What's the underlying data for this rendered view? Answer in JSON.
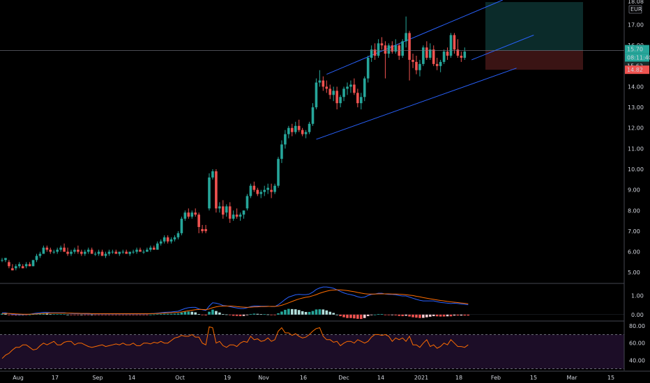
{
  "chart_data": {
    "type": "candlestick",
    "currency": "EUR",
    "price_axis": {
      "ticks": [
        5,
        6,
        7,
        8,
        9,
        10,
        11,
        12,
        13,
        14,
        15,
        16,
        17
      ],
      "tick_labels": [
        "5.00",
        "6.00",
        "7.00",
        "8.00",
        "9.00",
        "10.00",
        "11.00",
        "12.00",
        "13.00",
        "14.00",
        "15.00",
        "16.00",
        "17.00"
      ],
      "ylim": [
        4.5,
        18.2
      ],
      "top_label": "18.08",
      "last_price_label": "15.70",
      "countdown_label": "08:11:40",
      "secondary_price_label": "15.62",
      "stop_label": "14.82"
    },
    "time_axis": {
      "labels": [
        "Aug",
        "17",
        "Sep",
        "14",
        "Oct",
        "19",
        "Nov",
        "16",
        "Dec",
        "14",
        "2021",
        "18",
        "Feb",
        "15",
        "Mar",
        "15"
      ]
    },
    "candles": [
      [
        5.6,
        5.7,
        5.5,
        5.6
      ],
      [
        5.6,
        5.7,
        5.5,
        5.7
      ],
      [
        5.5,
        5.6,
        5.2,
        5.3
      ],
      [
        5.2,
        5.4,
        5.1,
        5.1
      ],
      [
        5.2,
        5.4,
        5.1,
        5.3
      ],
      [
        5.3,
        5.5,
        5.2,
        5.4
      ],
      [
        5.3,
        5.4,
        5.2,
        5.2
      ],
      [
        5.3,
        5.5,
        5.2,
        5.4
      ],
      [
        5.4,
        5.5,
        5.3,
        5.3
      ],
      [
        5.3,
        5.6,
        5.3,
        5.6
      ],
      [
        5.6,
        5.9,
        5.5,
        5.8
      ],
      [
        5.8,
        6.0,
        5.7,
        5.9
      ],
      [
        5.9,
        6.3,
        5.9,
        6.2
      ],
      [
        6.2,
        6.3,
        6.0,
        6.1
      ],
      [
        6.1,
        6.2,
        5.9,
        6.0
      ],
      [
        6.0,
        6.1,
        5.9,
        6.0
      ],
      [
        6.0,
        6.2,
        5.9,
        6.1
      ],
      [
        6.1,
        6.3,
        6.0,
        6.2
      ],
      [
        6.2,
        6.4,
        6.0,
        6.0
      ],
      [
        6.0,
        6.2,
        5.8,
        5.9
      ],
      [
        5.9,
        6.1,
        5.8,
        6.0
      ],
      [
        6.0,
        6.2,
        5.9,
        6.1
      ],
      [
        6.1,
        6.3,
        5.9,
        6.0
      ],
      [
        6.0,
        6.1,
        5.8,
        5.9
      ],
      [
        5.9,
        6.1,
        5.8,
        6.0
      ],
      [
        6.0,
        6.2,
        5.9,
        6.1
      ],
      [
        6.1,
        6.2,
        5.9,
        5.9
      ],
      [
        5.9,
        6.0,
        5.8,
        5.9
      ],
      [
        5.9,
        6.1,
        5.8,
        6.0
      ],
      [
        6.0,
        6.1,
        5.8,
        5.8
      ],
      [
        5.8,
        6.0,
        5.7,
        5.9
      ],
      [
        5.9,
        6.1,
        5.8,
        6.0
      ],
      [
        6.0,
        6.1,
        5.9,
        6.0
      ],
      [
        6.0,
        6.1,
        5.9,
        5.9
      ],
      [
        5.9,
        6.0,
        5.8,
        6.0
      ],
      [
        6.0,
        6.1,
        5.9,
        6.0
      ],
      [
        6.0,
        6.1,
        5.9,
        5.9
      ],
      [
        5.9,
        6.0,
        5.8,
        6.0
      ],
      [
        6.0,
        6.1,
        5.9,
        6.0
      ],
      [
        6.0,
        6.2,
        5.9,
        6.1
      ],
      [
        6.1,
        6.2,
        6.0,
        6.0
      ],
      [
        6.0,
        6.1,
        5.9,
        6.0
      ],
      [
        6.0,
        6.2,
        6.0,
        6.1
      ],
      [
        6.1,
        6.3,
        6.0,
        6.2
      ],
      [
        6.2,
        6.3,
        6.1,
        6.1
      ],
      [
        6.1,
        6.5,
        6.1,
        6.4
      ],
      [
        6.4,
        6.6,
        6.3,
        6.5
      ],
      [
        6.5,
        6.8,
        6.4,
        6.7
      ],
      [
        6.7,
        6.8,
        6.4,
        6.5
      ],
      [
        6.5,
        6.7,
        6.4,
        6.6
      ],
      [
        6.6,
        6.8,
        6.5,
        6.7
      ],
      [
        6.7,
        7.0,
        6.6,
        6.9
      ],
      [
        6.9,
        7.7,
        6.8,
        7.6
      ],
      [
        7.6,
        8.0,
        7.5,
        7.9
      ],
      [
        7.9,
        8.1,
        7.6,
        7.7
      ],
      [
        7.7,
        8.0,
        7.6,
        7.9
      ],
      [
        7.9,
        8.1,
        7.7,
        7.8
      ],
      [
        7.8,
        7.9,
        6.9,
        7.2
      ],
      [
        7.1,
        7.3,
        6.9,
        7.0
      ],
      [
        7.1,
        7.3,
        6.9,
        7.0
      ],
      [
        8.1,
        9.8,
        8.0,
        9.6
      ],
      [
        9.6,
        10.0,
        9.5,
        9.9
      ],
      [
        9.9,
        10.0,
        7.9,
        8.1
      ],
      [
        8.1,
        8.4,
        7.9,
        8.2
      ],
      [
        8.2,
        8.5,
        7.6,
        7.8
      ],
      [
        7.9,
        8.3,
        7.7,
        8.2
      ],
      [
        8.2,
        8.4,
        7.4,
        7.6
      ],
      [
        7.6,
        8.0,
        7.5,
        7.8
      ],
      [
        7.8,
        8.1,
        7.6,
        7.7
      ],
      [
        7.7,
        7.9,
        7.5,
        7.8
      ],
      [
        7.8,
        8.0,
        7.6,
        8.0
      ],
      [
        8.1,
        8.8,
        8.0,
        8.7
      ],
      [
        8.7,
        9.3,
        8.6,
        9.2
      ],
      [
        9.2,
        9.4,
        8.9,
        9.0
      ],
      [
        9.0,
        9.1,
        8.7,
        8.8
      ],
      [
        8.8,
        9.0,
        8.6,
        8.9
      ],
      [
        8.9,
        9.2,
        8.7,
        9.0
      ],
      [
        9.0,
        9.3,
        8.8,
        9.1
      ],
      [
        9.0,
        9.3,
        8.6,
        8.9
      ],
      [
        8.9,
        9.3,
        8.8,
        9.2
      ],
      [
        9.2,
        10.6,
        9.1,
        10.5
      ],
      [
        10.5,
        11.4,
        10.3,
        11.2
      ],
      [
        11.2,
        11.9,
        11.0,
        11.7
      ],
      [
        11.7,
        12.1,
        11.5,
        12.0
      ],
      [
        12.0,
        12.2,
        11.6,
        11.8
      ],
      [
        11.8,
        12.3,
        11.7,
        12.1
      ],
      [
        12.1,
        12.4,
        11.8,
        11.9
      ],
      [
        11.9,
        12.0,
        11.6,
        11.7
      ],
      [
        11.7,
        11.9,
        11.5,
        11.8
      ],
      [
        11.8,
        12.3,
        11.7,
        12.2
      ],
      [
        12.2,
        13.2,
        12.1,
        13.0
      ],
      [
        13.0,
        14.4,
        12.9,
        14.2
      ],
      [
        14.2,
        14.8,
        14.0,
        14.3
      ],
      [
        14.3,
        14.5,
        13.8,
        14.0
      ],
      [
        14.0,
        14.3,
        13.7,
        13.9
      ],
      [
        13.9,
        14.1,
        13.4,
        13.6
      ],
      [
        13.6,
        14.0,
        13.3,
        13.8
      ],
      [
        13.8,
        14.0,
        12.9,
        13.2
      ],
      [
        13.2,
        13.6,
        13.0,
        13.5
      ],
      [
        13.5,
        14.0,
        13.3,
        13.9
      ],
      [
        13.9,
        14.2,
        13.6,
        14.0
      ],
      [
        14.0,
        14.3,
        13.7,
        14.1
      ],
      [
        14.1,
        14.4,
        13.6,
        13.7
      ],
      [
        13.7,
        13.9,
        13.0,
        13.2
      ],
      [
        13.2,
        13.7,
        12.9,
        13.5
      ],
      [
        13.5,
        14.5,
        13.3,
        14.4
      ],
      [
        14.4,
        15.5,
        14.2,
        15.4
      ],
      [
        15.4,
        16.0,
        15.2,
        15.8
      ],
      [
        15.8,
        16.1,
        15.3,
        15.5
      ],
      [
        15.5,
        16.3,
        15.4,
        16.1
      ],
      [
        16.1,
        16.4,
        15.8,
        16.0
      ],
      [
        16.0,
        16.2,
        14.4,
        15.6
      ],
      [
        15.6,
        16.1,
        15.4,
        16.0
      ],
      [
        16.0,
        16.2,
        15.6,
        15.7
      ],
      [
        15.7,
        16.3,
        15.6,
        16.0
      ],
      [
        16.0,
        16.1,
        15.3,
        15.5
      ],
      [
        15.5,
        16.3,
        15.4,
        16.2
      ],
      [
        16.2,
        17.4,
        15.9,
        16.6
      ],
      [
        16.6,
        16.7,
        14.3,
        15.3
      ],
      [
        15.3,
        15.6,
        14.9,
        15.2
      ],
      [
        15.2,
        15.5,
        14.6,
        14.8
      ],
      [
        14.8,
        15.3,
        14.5,
        15.1
      ],
      [
        15.1,
        16.0,
        15.0,
        15.9
      ],
      [
        15.9,
        16.2,
        15.3,
        15.4
      ],
      [
        15.4,
        16.1,
        15.3,
        15.8
      ],
      [
        15.8,
        16.0,
        15.0,
        15.1
      ],
      [
        15.1,
        15.4,
        14.8,
        15.0
      ],
      [
        15.0,
        15.3,
        14.7,
        15.2
      ],
      [
        15.2,
        15.8,
        15.1,
        15.7
      ],
      [
        15.7,
        15.9,
        15.3,
        15.5
      ],
      [
        15.5,
        16.6,
        15.4,
        16.5
      ],
      [
        16.5,
        16.6,
        15.6,
        15.8
      ],
      [
        15.8,
        16.3,
        15.4,
        15.5
      ],
      [
        15.5,
        15.7,
        15.2,
        15.4
      ],
      [
        15.4,
        15.9,
        15.3,
        15.7
      ]
    ],
    "channel": {
      "lower": [
        [
          91,
          11.45
        ],
        [
          149,
          14.9
        ]
      ],
      "upper": [
        [
          94,
          14.6
        ],
        [
          145,
          18.2
        ]
      ],
      "lower_ext": [
        [
          136,
          15.3
        ],
        [
          154,
          16.5
        ]
      ]
    },
    "position": {
      "target": 18.1,
      "entry": 15.75,
      "stop": 14.82,
      "from_bar": 140
    },
    "macd": {
      "ticks": [
        0,
        1
      ],
      "tick_labels": [
        "0.00",
        "1.00"
      ],
      "ylim": [
        -0.3,
        1.6
      ],
      "macd_line": [
        0.1,
        0.1,
        0.05,
        0.02,
        0.0,
        0.0,
        0.0,
        0.0,
        0.02,
        0.05,
        0.08,
        0.1,
        0.12,
        0.12,
        0.1,
        0.1,
        0.1,
        0.1,
        0.1,
        0.08,
        0.06,
        0.05,
        0.05,
        0.05,
        0.04,
        0.04,
        0.04,
        0.04,
        0.04,
        0.04,
        0.04,
        0.04,
        0.04,
        0.04,
        0.04,
        0.04,
        0.04,
        0.04,
        0.04,
        0.04,
        0.04,
        0.04,
        0.04,
        0.05,
        0.06,
        0.08,
        0.1,
        0.12,
        0.13,
        0.14,
        0.16,
        0.18,
        0.25,
        0.32,
        0.36,
        0.38,
        0.38,
        0.3,
        0.26,
        0.22,
        0.45,
        0.62,
        0.6,
        0.55,
        0.48,
        0.46,
        0.42,
        0.38,
        0.35,
        0.32,
        0.32,
        0.36,
        0.42,
        0.45,
        0.45,
        0.44,
        0.44,
        0.44,
        0.42,
        0.42,
        0.52,
        0.65,
        0.8,
        0.92,
        0.98,
        1.04,
        1.06,
        1.05,
        1.05,
        1.08,
        1.18,
        1.32,
        1.4,
        1.45,
        1.45,
        1.42,
        1.38,
        1.3,
        1.22,
        1.14,
        1.08,
        1.05,
        1.0,
        0.94,
        0.9,
        0.92,
        1.0,
        1.06,
        1.08,
        1.12,
        1.12,
        1.08,
        1.06,
        1.06,
        1.04,
        1.0,
        0.98,
        0.98,
        0.92,
        0.86,
        0.8,
        0.75,
        0.72,
        0.72,
        0.72,
        0.72,
        0.68,
        0.64,
        0.62,
        0.6,
        0.58,
        0.6,
        0.58,
        0.56,
        0.54,
        0.52
      ],
      "signal_line": [
        0.05,
        0.06,
        0.06,
        0.05,
        0.04,
        0.03,
        0.02,
        0.02,
        0.02,
        0.03,
        0.04,
        0.05,
        0.06,
        0.07,
        0.08,
        0.08,
        0.08,
        0.08,
        0.08,
        0.08,
        0.08,
        0.07,
        0.07,
        0.06,
        0.06,
        0.06,
        0.05,
        0.05,
        0.05,
        0.05,
        0.05,
        0.05,
        0.05,
        0.05,
        0.05,
        0.05,
        0.05,
        0.05,
        0.05,
        0.05,
        0.05,
        0.05,
        0.05,
        0.05,
        0.05,
        0.06,
        0.07,
        0.08,
        0.09,
        0.1,
        0.11,
        0.12,
        0.14,
        0.17,
        0.2,
        0.23,
        0.26,
        0.27,
        0.27,
        0.26,
        0.3,
        0.36,
        0.41,
        0.44,
        0.45,
        0.45,
        0.45,
        0.44,
        0.42,
        0.4,
        0.39,
        0.38,
        0.39,
        0.4,
        0.41,
        0.42,
        0.42,
        0.43,
        0.43,
        0.43,
        0.45,
        0.49,
        0.55,
        0.62,
        0.69,
        0.76,
        0.82,
        0.87,
        0.91,
        0.94,
        0.99,
        1.05,
        1.12,
        1.18,
        1.23,
        1.27,
        1.29,
        1.3,
        1.3,
        1.28,
        1.26,
        1.23,
        1.2,
        1.16,
        1.13,
        1.1,
        1.08,
        1.08,
        1.08,
        1.09,
        1.09,
        1.09,
        1.09,
        1.08,
        1.08,
        1.07,
        1.06,
        1.04,
        1.02,
        1.0,
        0.96,
        0.93,
        0.89,
        0.86,
        0.83,
        0.8,
        0.77,
        0.74,
        0.72,
        0.69,
        0.67,
        0.65,
        0.63,
        0.61,
        0.59,
        0.57
      ]
    },
    "rsi": {
      "ticks": [
        40,
        60,
        80
      ],
      "tick_labels": [
        "40.00",
        "60.00",
        "80.00"
      ],
      "bands": [
        30,
        70
      ],
      "ylim": [
        28,
        85
      ],
      "values": [
        42,
        46,
        48,
        52,
        55,
        55,
        58,
        58,
        55,
        52,
        53,
        57,
        60,
        58,
        60,
        62,
        58,
        58,
        61,
        62,
        62,
        58,
        60,
        60,
        58,
        56,
        55,
        56,
        57,
        58,
        56,
        57,
        58,
        59,
        58,
        60,
        58,
        58,
        60,
        57,
        57,
        60,
        60,
        59,
        61,
        60,
        62,
        60,
        60,
        63,
        66,
        67,
        69,
        68,
        68,
        70,
        67,
        67,
        60,
        58,
        79,
        78,
        60,
        62,
        57,
        55,
        58,
        58,
        56,
        60,
        62,
        61,
        68,
        64,
        65,
        62,
        63,
        66,
        62,
        64,
        74,
        78,
        72,
        72,
        69,
        71,
        68,
        66,
        67,
        70,
        74,
        77,
        78,
        68,
        64,
        64,
        61,
        62,
        57,
        60,
        62,
        62,
        60,
        64,
        62,
        60,
        62,
        67,
        70,
        70,
        69,
        70,
        68,
        62,
        66,
        64,
        66,
        62,
        68,
        58,
        58,
        55,
        60,
        64,
        56,
        58,
        54,
        56,
        60,
        58,
        64,
        60,
        56,
        56,
        55,
        58
      ]
    }
  },
  "colors": {
    "background": "#000000",
    "up": "#26a69a",
    "down": "#ef5350",
    "channel": "#2962ff",
    "macd_line": "#2962ff",
    "signal_line": "#ff6d00",
    "rsi_line": "#ff6d00",
    "rsi_fill": "#1c0d27",
    "target_zone": "#0b2b2a",
    "stop_zone": "#3a1414",
    "axis_text": "#d1d4dc",
    "grid": "#2a2e39"
  }
}
